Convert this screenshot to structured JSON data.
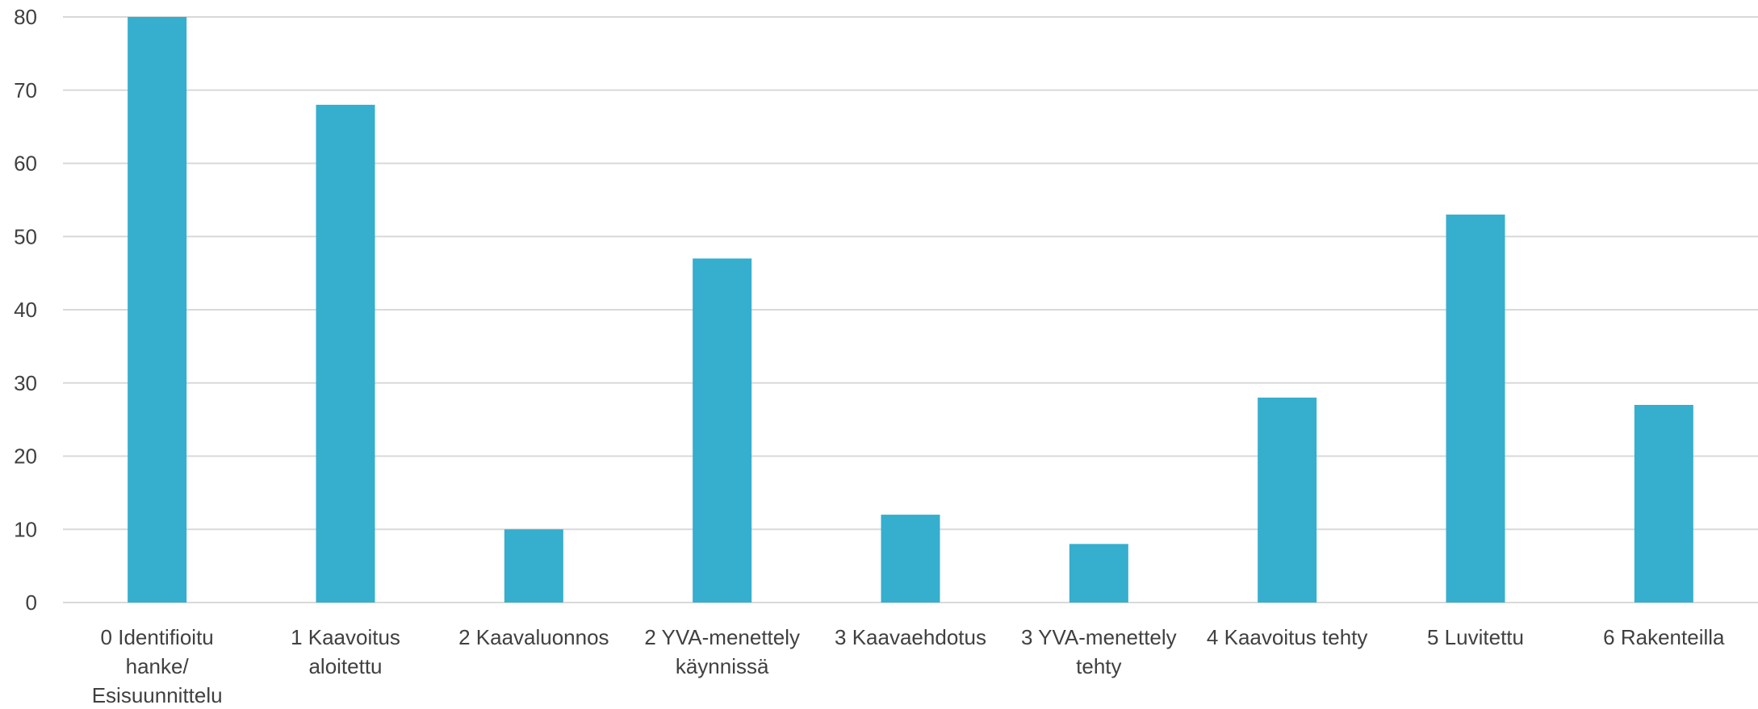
{
  "chart_data": {
    "type": "bar",
    "categories": [
      "0 Identifioitu hanke/ Esisuunnittelu",
      "1 Kaavoitus aloitettu",
      "2 Kaavaluonnos",
      "2 YVA-menettely käynnissä",
      "3 Kaavaehdotus",
      "3 YVA-menettely tehty",
      "4 Kaavoitus tehty",
      "5 Luvitettu",
      "6 Rakenteilla"
    ],
    "category_lines": [
      [
        "0 Identifioitu",
        "hanke/",
        "Esisuunnittelu"
      ],
      [
        "1 Kaavoitus",
        "aloitettu"
      ],
      [
        "2 Kaavaluonnos"
      ],
      [
        "2 YVA-menettely",
        "käynnissä"
      ],
      [
        "3 Kaavaehdotus"
      ],
      [
        "3 YVA-menettely",
        "tehty"
      ],
      [
        "4 Kaavoitus tehty"
      ],
      [
        "5 Luvitettu"
      ],
      [
        "6 Rakenteilla"
      ]
    ],
    "values": [
      80,
      68,
      10,
      47,
      12,
      8,
      28,
      53,
      27
    ],
    "ylim": [
      0,
      80
    ],
    "yticks": [
      0,
      10,
      20,
      30,
      40,
      50,
      60,
      70,
      80
    ],
    "grid": true,
    "legend": "none",
    "bar_color": "#36AECE",
    "grid_color": "#D9D9D9",
    "text_color": "#404040"
  }
}
